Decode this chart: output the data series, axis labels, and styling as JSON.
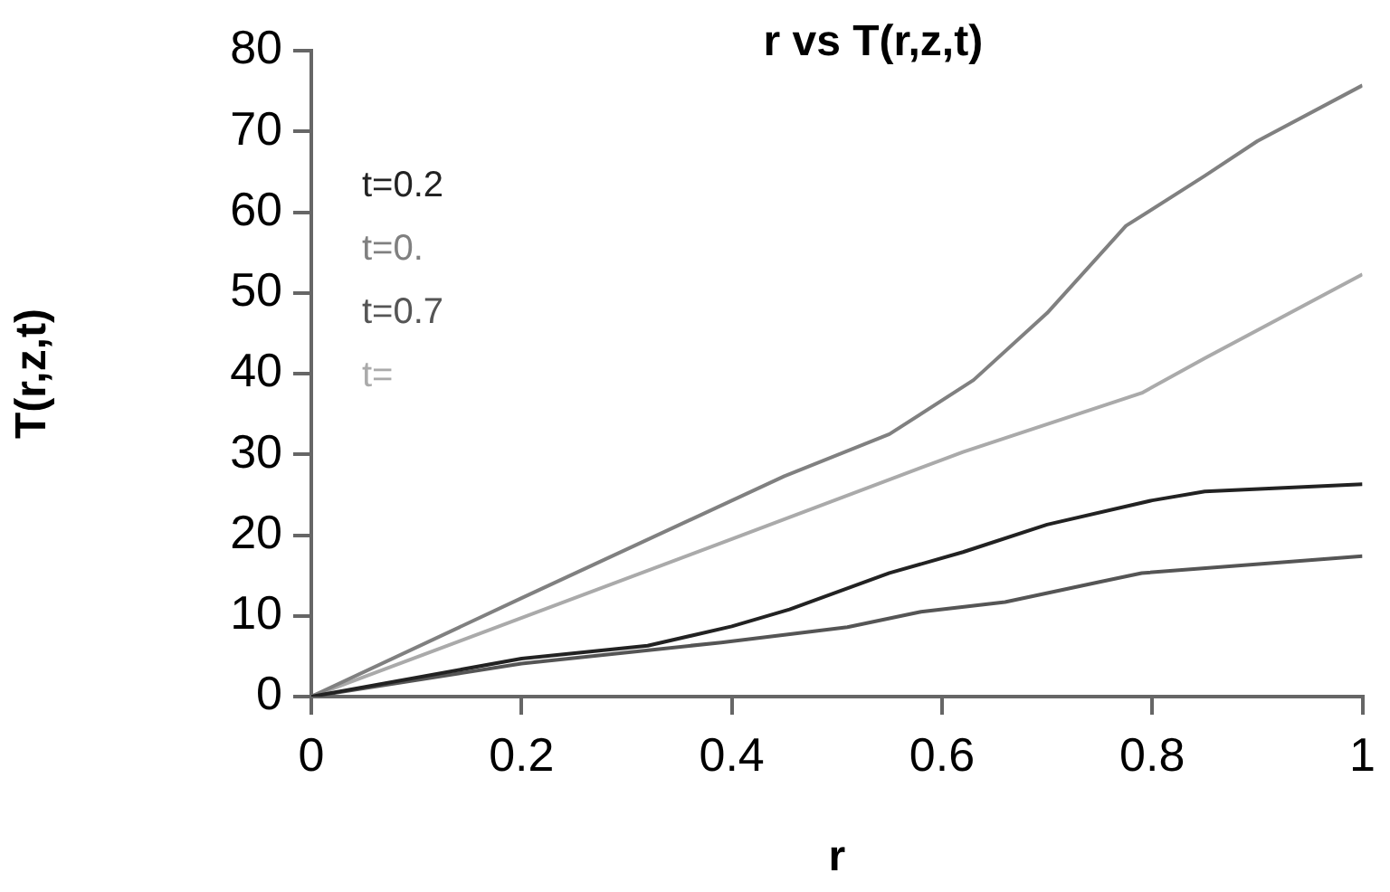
{
  "chart_data": {
    "type": "line",
    "title": "r vs T(r,z,t)",
    "xlabel": "r",
    "ylabel": "T(r,z,t)",
    "xlim": [
      0,
      1
    ],
    "xticks": [
      0,
      0.2,
      0.4,
      0.6,
      0.8,
      1
    ],
    "ylim": [
      0,
      80
    ],
    "yticks": [
      0,
      10,
      20,
      30,
      40,
      50,
      60,
      70,
      80
    ],
    "grid": false,
    "legend": "top left",
    "marker": "none",
    "line_style": "solid",
    "series": [
      {
        "name": "t=0.2",
        "color": "#222222",
        "x": [
          0,
          0.2,
          0.32,
          0.4,
          0.455,
          0.55,
          0.62,
          0.7,
          0.8,
          0.85,
          1
        ],
        "values": [
          0,
          4.7,
          6.3,
          8.7,
          10.8,
          15.3,
          17.9,
          21.3,
          24.3,
          25.4,
          26.3
        ]
      },
      {
        "name": "t=0.",
        "color": "#808080",
        "x": [
          0,
          0.2,
          0.45,
          0.55,
          0.63,
          0.7,
          0.775,
          0.85,
          0.9,
          1
        ],
        "values": [
          0,
          12.2,
          27.3,
          32.5,
          39.2,
          47.5,
          58.3,
          64.5,
          68.8,
          75.7
        ]
      },
      {
        "name": "t=0.7",
        "color": "#555555",
        "x": [
          0,
          0.2,
          0.39,
          0.51,
          0.58,
          0.66,
          0.75,
          0.79,
          1
        ],
        "values": [
          0,
          4.1,
          6.7,
          8.6,
          10.5,
          11.7,
          14.2,
          15.3,
          17.4
        ]
      },
      {
        "name": "t=",
        "color": "#aaaaaa",
        "x": [
          0,
          0.4,
          0.62,
          0.79,
          0.85,
          1
        ],
        "values": [
          0,
          19.5,
          30.3,
          37.6,
          41.9,
          52.3
        ]
      }
    ]
  }
}
